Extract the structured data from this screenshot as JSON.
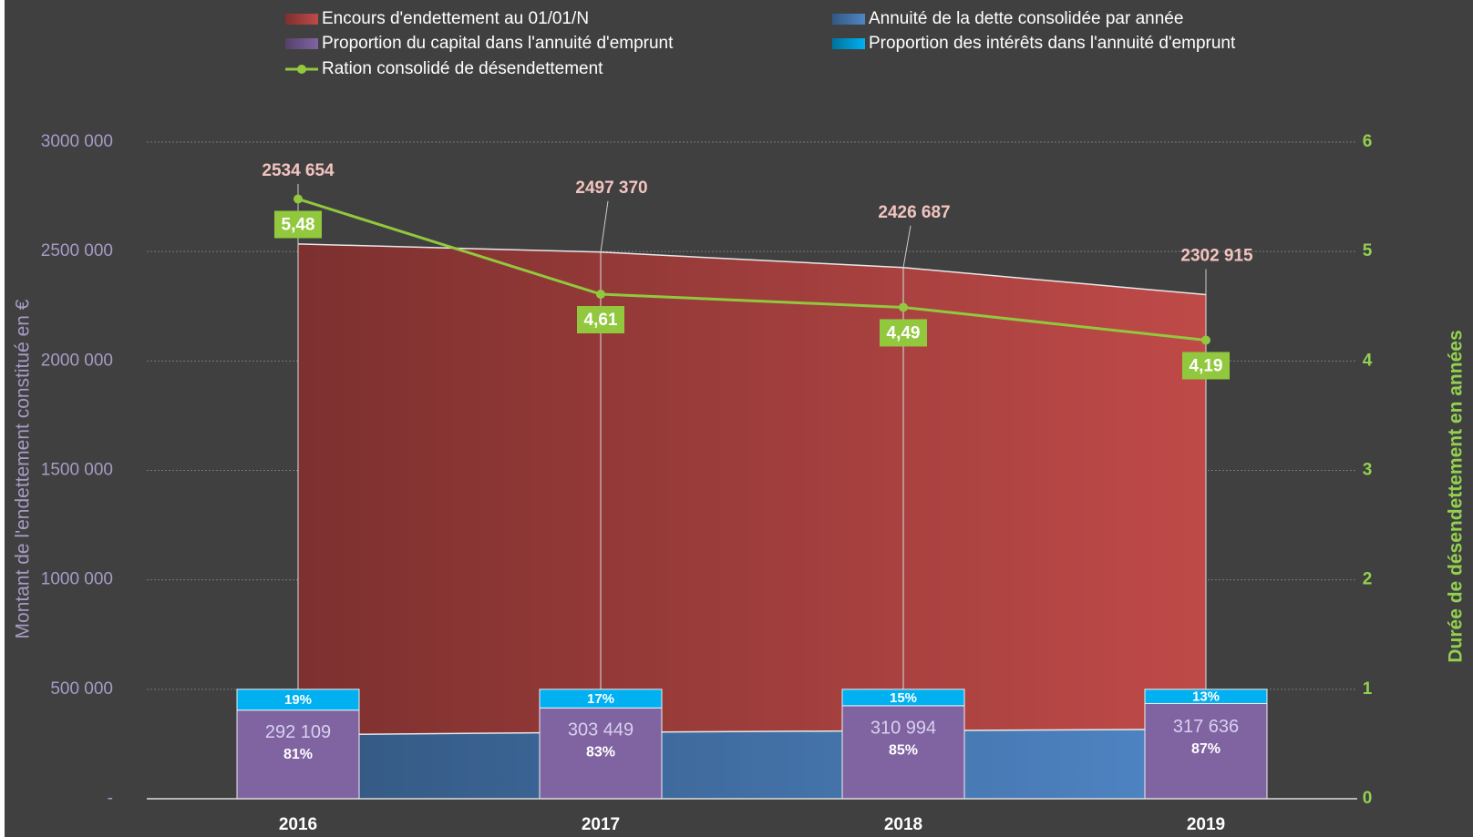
{
  "chart_data": {
    "type": "combo",
    "categories": [
      "2016",
      "2017",
      "2018",
      "2019"
    ],
    "y_title": "Montant de l'endettement constitué en €",
    "y2_title": "Durée de désendettement en années",
    "ylim": [
      0,
      3000000
    ],
    "yticks": [
      {
        "value": 0,
        "label": "-"
      },
      {
        "value": 500000,
        "label": "500 000"
      },
      {
        "value": 1000000,
        "label": "1000 000"
      },
      {
        "value": 1500000,
        "label": "1500 000"
      },
      {
        "value": 2000000,
        "label": "2000 000"
      },
      {
        "value": 2500000,
        "label": "2500 000"
      },
      {
        "value": 3000000,
        "label": "3000 000"
      }
    ],
    "y2lim": [
      0,
      6
    ],
    "y2ticks": [
      0,
      1,
      2,
      3,
      4,
      5,
      6
    ],
    "y3lim": [
      0,
      600
    ],
    "grid": true,
    "series": [
      {
        "name": "Encours d'endettement au 01/01/N",
        "type": "area",
        "color": "#bf4a48",
        "values": [
          2534654,
          2497370,
          2426687,
          2302915
        ],
        "value_labels": [
          "2534 654",
          "2497 370",
          "2426 687",
          "2302 915"
        ]
      },
      {
        "name": "Annuité de la dette consolidée par année",
        "type": "area",
        "color": "#4f86c6",
        "values": [
          292109,
          303449,
          310994,
          317636
        ],
        "value_labels": [
          "292 109",
          "303 449",
          "310 994",
          "317 636"
        ]
      },
      {
        "name": "Proportion du capital dans l'annuité d'emprunt",
        "type": "bar",
        "axis": "y3",
        "color": "#8064a2",
        "values": [
          81,
          83,
          85,
          87
        ],
        "value_labels": [
          "81%",
          "83%",
          "85%",
          "87%"
        ]
      },
      {
        "name": "Proportion des intérêts dans l'annuité d'emprunt",
        "type": "bar",
        "axis": "y3",
        "color": "#00b0f0",
        "values": [
          19,
          17,
          15,
          13
        ],
        "value_labels": [
          "19%",
          "17%",
          "15%",
          "13%"
        ]
      },
      {
        "name": "Ration consolidé de désendettement",
        "type": "line",
        "axis": "y2",
        "color": "#92c83e",
        "values": [
          5.48,
          4.61,
          4.49,
          4.19
        ],
        "value_labels": [
          "5,48",
          "4,61",
          "4,49",
          "4,19"
        ]
      }
    ]
  }
}
